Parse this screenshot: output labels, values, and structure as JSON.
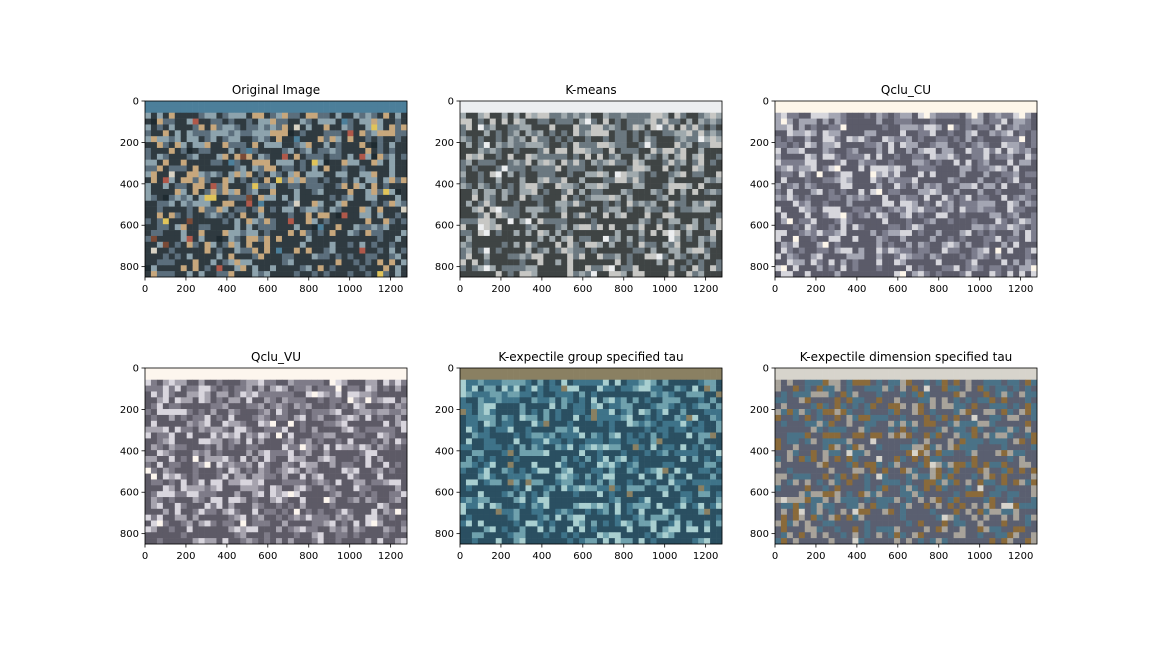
{
  "figure": {
    "background": "#ffffff"
  },
  "chart_data": [
    {
      "type": "image",
      "title": "Original Image",
      "xlim": [
        0,
        1280
      ],
      "ylim": [
        850,
        0
      ],
      "xticks": [
        0,
        200,
        400,
        600,
        800,
        1000,
        1200
      ],
      "yticks": [
        0,
        200,
        400,
        600,
        800
      ],
      "palette": [
        "#2f3a40",
        "#5b6e7c",
        "#8da3ad",
        "#c7a77c",
        "#b0584a",
        "#d9d3c4",
        "#4c7f9a",
        "#e0c45a",
        "#7b4a36",
        "#1e2a30"
      ]
    },
    {
      "type": "image",
      "title": "K-means",
      "xlim": [
        0,
        1280
      ],
      "ylim": [
        850,
        0
      ],
      "xticks": [
        0,
        200,
        400,
        600,
        800,
        1000,
        1200
      ],
      "yticks": [
        0,
        200,
        400,
        600,
        800
      ],
      "palette": [
        "#3f4444",
        "#6b7880",
        "#9fa9ad",
        "#c7c7c4",
        "#eceef0"
      ]
    },
    {
      "type": "image",
      "title": "Qclu_CU",
      "xlim": [
        0,
        1280
      ],
      "ylim": [
        850,
        0
      ],
      "xticks": [
        0,
        200,
        400,
        600,
        800,
        1000,
        1200
      ],
      "yticks": [
        0,
        200,
        400,
        600,
        800
      ],
      "palette": [
        "#5b5b69",
        "#7c7d8d",
        "#a4a6b3",
        "#d6d6dc",
        "#fdf6ea"
      ]
    },
    {
      "type": "image",
      "title": "Qclu_VU",
      "xlim": [
        0,
        1280
      ],
      "ylim": [
        850,
        0
      ],
      "xticks": [
        0,
        200,
        400,
        600,
        800,
        1000,
        1200
      ],
      "yticks": [
        0,
        200,
        400,
        600,
        800
      ],
      "palette": [
        "#5d5a66",
        "#7e7b88",
        "#a6a3ae",
        "#d9d6de",
        "#fdf6ee"
      ]
    },
    {
      "type": "image",
      "title": "K-expectile group specified tau",
      "xlim": [
        0,
        1280
      ],
      "ylim": [
        850,
        0
      ],
      "xticks": [
        0,
        200,
        400,
        600,
        800,
        1000,
        1200
      ],
      "yticks": [
        0,
        200,
        400,
        600,
        800
      ],
      "palette": [
        "#2a4f61",
        "#3e7389",
        "#6fa1ad",
        "#a9cfd0",
        "#8a8062"
      ]
    },
    {
      "type": "image",
      "title": "K-expectile dimension specified tau",
      "xlim": [
        0,
        1280
      ],
      "ylim": [
        850,
        0
      ],
      "xticks": [
        0,
        200,
        400,
        600,
        800,
        1000,
        1200
      ],
      "yticks": [
        0,
        200,
        400,
        600,
        800
      ],
      "palette": [
        "#5a5f70",
        "#4a7287",
        "#8a6a3a",
        "#a8a39a",
        "#d7d4cc"
      ]
    }
  ]
}
